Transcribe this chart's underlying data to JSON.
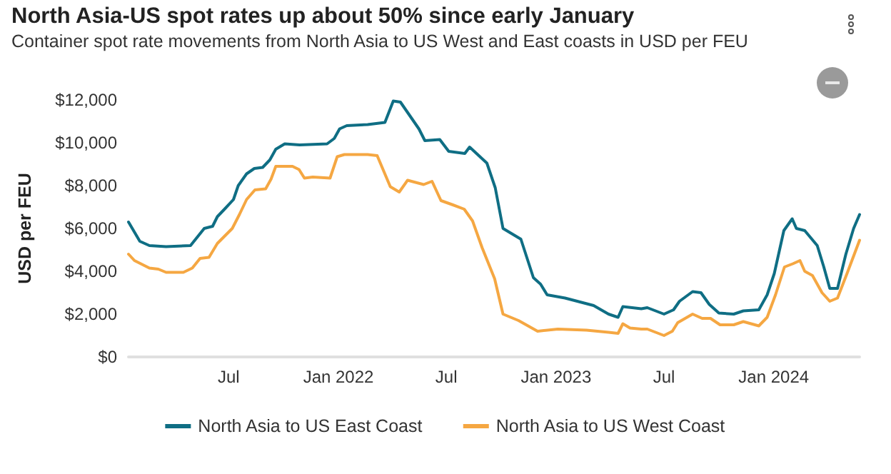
{
  "chart_data": {
    "type": "line",
    "title": "North Asia-US spot rates up about 50% since early January",
    "subtitle": "Container spot rate movements from North Asia to US West and East coasts in USD per FEU",
    "ylabel": "USD per FEU",
    "xlim": [
      "2021-01-14",
      "2024-05-24"
    ],
    "xticks": [
      {
        "value": "2021-07-01",
        "label": "Jul"
      },
      {
        "value": "2022-01-01",
        "label": "Jan 2022"
      },
      {
        "value": "2022-07-01",
        "label": "Jul"
      },
      {
        "value": "2023-01-01",
        "label": "Jan 2023"
      },
      {
        "value": "2023-07-01",
        "label": "Jul"
      },
      {
        "value": "2024-01-01",
        "label": "Jan 2024"
      }
    ],
    "ylim": [
      0,
      12000
    ],
    "yticks": [
      {
        "value": 0,
        "label": "$0"
      },
      {
        "value": 2000,
        "label": "$2,000"
      },
      {
        "value": 4000,
        "label": "$4,000"
      },
      {
        "value": 6000,
        "label": "$6,000"
      },
      {
        "value": 8000,
        "label": "$8,000"
      },
      {
        "value": 10000,
        "label": "$10,000"
      },
      {
        "value": 12000,
        "label": "$12,000"
      }
    ],
    "grid": false,
    "legend": "bottom",
    "marker": "none",
    "line_style": "solid",
    "series": [
      {
        "name": "North Asia to US East Coast",
        "color": "#0f6e84",
        "x": [
          "2021-01-14",
          "2021-02-02",
          "2021-02-18",
          "2021-03-18",
          "2021-04-28",
          "2021-05-21",
          "2021-06-04",
          "2021-06-12",
          "2021-06-24",
          "2021-07-09",
          "2021-07-17",
          "2021-07-31",
          "2021-08-13",
          "2021-08-27",
          "2021-09-08",
          "2021-09-18",
          "2021-10-03",
          "2021-10-28",
          "2021-12-13",
          "2021-12-25",
          "2022-01-03",
          "2022-01-15",
          "2022-02-19",
          "2022-03-20",
          "2022-04-03",
          "2022-04-15",
          "2022-05-16",
          "2022-05-26",
          "2022-06-20",
          "2022-07-05",
          "2022-08-01",
          "2022-08-09",
          "2022-09-07",
          "2022-09-21",
          "2022-10-04",
          "2022-11-03",
          "2022-11-24",
          "2022-12-06",
          "2022-12-17",
          "2023-01-16",
          "2023-03-05",
          "2023-03-30",
          "2023-04-15",
          "2023-04-23",
          "2023-05-24",
          "2023-06-03",
          "2023-07-01",
          "2023-07-17",
          "2023-07-27",
          "2023-08-18",
          "2023-09-01",
          "2023-09-15",
          "2023-10-01",
          "2023-10-26",
          "2023-11-11",
          "2023-12-07",
          "2023-12-21",
          "2024-01-02",
          "2024-01-18",
          "2024-02-01",
          "2024-02-08",
          "2024-02-22",
          "2024-03-14",
          "2024-03-25",
          "2024-04-04",
          "2024-04-17",
          "2024-05-01",
          "2024-05-14",
          "2024-05-24"
        ],
        "values": [
          6300,
          5400,
          5200,
          5150,
          5200,
          6000,
          6100,
          6550,
          6900,
          7350,
          8000,
          8550,
          8800,
          8850,
          9200,
          9700,
          9950,
          9900,
          9950,
          10200,
          10650,
          10800,
          10850,
          10950,
          11950,
          11900,
          10650,
          10100,
          10150,
          9600,
          9500,
          9800,
          9050,
          7900,
          6000,
          5500,
          3700,
          3400,
          2900,
          2750,
          2400,
          2000,
          1850,
          2350,
          2250,
          2300,
          2000,
          2200,
          2600,
          3050,
          3000,
          2450,
          2050,
          2000,
          2150,
          2200,
          2900,
          3900,
          5900,
          6450,
          6000,
          5900,
          5200,
          4200,
          3200,
          3200,
          4800,
          6000,
          6650
        ]
      },
      {
        "name": "North Asia to US West Coast",
        "color": "#f5a742",
        "x": [
          "2021-01-14",
          "2021-01-24",
          "2021-02-18",
          "2021-03-05",
          "2021-03-18",
          "2021-04-16",
          "2021-05-01",
          "2021-05-14",
          "2021-05-29",
          "2021-06-12",
          "2021-07-07",
          "2021-07-19",
          "2021-07-31",
          "2021-08-14",
          "2021-09-01",
          "2021-09-10",
          "2021-09-18",
          "2021-10-16",
          "2021-10-27",
          "2021-11-05",
          "2021-11-19",
          "2021-12-18",
          "2021-12-30",
          "2022-01-11",
          "2022-02-19",
          "2022-03-07",
          "2022-03-29",
          "2022-04-13",
          "2022-04-27",
          "2022-05-24",
          "2022-06-07",
          "2022-06-22",
          "2022-07-12",
          "2022-07-31",
          "2022-08-14",
          "2022-08-30",
          "2022-09-20",
          "2022-10-04",
          "2022-10-30",
          "2022-12-01",
          "2023-01-04",
          "2023-02-21",
          "2023-03-30",
          "2023-04-15",
          "2023-04-23",
          "2023-05-05",
          "2023-05-24",
          "2023-06-03",
          "2023-07-01",
          "2023-07-15",
          "2023-07-24",
          "2023-08-18",
          "2023-09-03",
          "2023-09-17",
          "2023-10-03",
          "2023-10-26",
          "2023-11-11",
          "2023-12-07",
          "2023-12-21",
          "2024-01-04",
          "2024-01-19",
          "2024-02-02",
          "2024-02-14",
          "2024-02-22",
          "2024-03-06",
          "2024-03-22",
          "2024-04-04",
          "2024-04-17",
          "2024-05-03",
          "2024-05-24"
        ],
        "values": [
          4800,
          4500,
          4150,
          4100,
          3950,
          3950,
          4150,
          4600,
          4650,
          5300,
          6000,
          6650,
          7350,
          7800,
          7850,
          8300,
          8900,
          8900,
          8750,
          8350,
          8400,
          8350,
          9350,
          9450,
          9450,
          9400,
          7950,
          7700,
          8250,
          8050,
          8200,
          7300,
          7100,
          6900,
          6350,
          5100,
          3650,
          2000,
          1700,
          1200,
          1300,
          1250,
          1150,
          1100,
          1550,
          1350,
          1300,
          1300,
          1000,
          1200,
          1600,
          2000,
          1800,
          1800,
          1500,
          1500,
          1650,
          1450,
          1850,
          2900,
          4200,
          4350,
          4500,
          4000,
          3800,
          3000,
          2600,
          2750,
          3900,
          5450
        ]
      }
    ]
  }
}
